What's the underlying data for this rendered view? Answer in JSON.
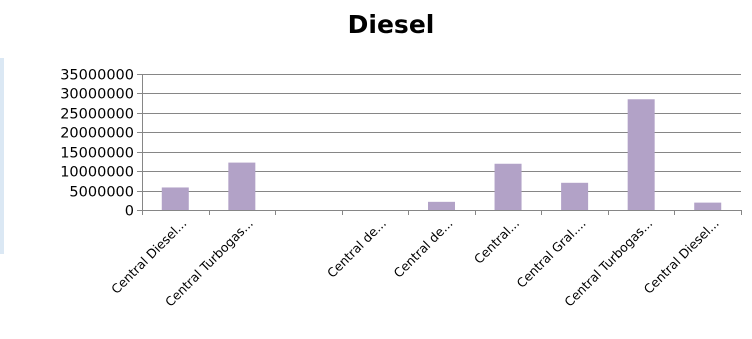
{
  "chart_data": {
    "type": "bar",
    "title": "Diesel",
    "categories": [
      "Central Diesel...",
      "Central Turbogas...",
      "",
      "Central de...",
      "Central de...",
      "Central...",
      "Central Gral....",
      "Central Turbogas...",
      "Central Diesel..."
    ],
    "values": [
      5800000,
      12200000,
      0,
      0,
      2100000,
      11900000,
      7000000,
      28500000,
      1900000
    ],
    "ylim": [
      0,
      35000000
    ],
    "yticks": [
      0,
      5000000,
      10000000,
      15000000,
      20000000,
      25000000,
      30000000,
      35000000
    ],
    "xlabel": "",
    "ylabel": "",
    "grid": true,
    "legend": "none",
    "colors": {
      "bar": "#b2a2c7",
      "grid": "#868686",
      "axis": "#868686"
    }
  }
}
